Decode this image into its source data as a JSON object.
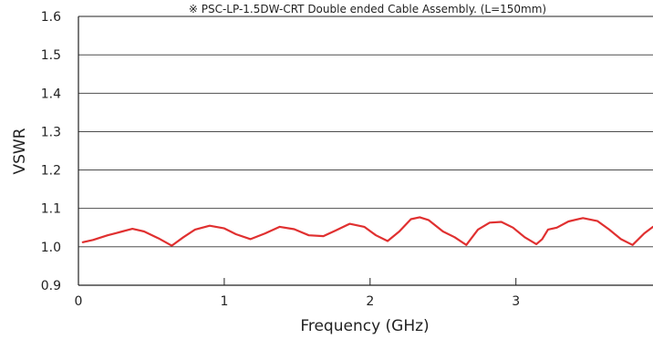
{
  "chart_data": {
    "type": "line",
    "title": "※ PSC-LP-1.5DW-CRT Double ended Cable Assembly. (L=150mm)",
    "xlabel": "Frequency (GHz)",
    "ylabel": "VSWR",
    "xlim": [
      0,
      3.94
    ],
    "ylim": [
      0.9,
      1.6
    ],
    "x_ticks": [
      "0",
      "1",
      "2",
      "3"
    ],
    "x_tick_values": [
      0,
      1,
      2,
      3
    ],
    "y_ticks": [
      "0.9",
      "1.0",
      "1.1",
      "1.2",
      "1.3",
      "1.4",
      "1.5",
      "1.6"
    ],
    "y_tick_values": [
      0.9,
      1.0,
      1.1,
      1.2,
      1.3,
      1.4,
      1.5,
      1.6
    ],
    "grid": "horizontal",
    "colors": {
      "line": "#e03030",
      "axis": "#222222",
      "grid": "#333333"
    },
    "series": [
      {
        "name": "",
        "x": [
          0.03,
          0.1,
          0.2,
          0.3,
          0.37,
          0.45,
          0.55,
          0.64,
          0.72,
          0.8,
          0.9,
          1.0,
          1.08,
          1.18,
          1.28,
          1.38,
          1.48,
          1.58,
          1.68,
          1.76,
          1.86,
          1.96,
          2.04,
          2.12,
          2.2,
          2.28,
          2.34,
          2.4,
          2.5,
          2.58,
          2.66,
          2.74,
          2.82,
          2.9,
          2.98,
          3.06,
          3.14,
          3.18,
          3.22,
          3.28,
          3.36,
          3.46,
          3.56,
          3.64,
          3.72,
          3.8,
          3.88,
          3.94
        ],
        "y": [
          1.012,
          1.018,
          1.03,
          1.04,
          1.047,
          1.04,
          1.022,
          1.003,
          1.025,
          1.045,
          1.055,
          1.048,
          1.033,
          1.02,
          1.035,
          1.052,
          1.046,
          1.03,
          1.028,
          1.042,
          1.06,
          1.052,
          1.03,
          1.015,
          1.04,
          1.072,
          1.077,
          1.07,
          1.04,
          1.025,
          1.005,
          1.045,
          1.063,
          1.065,
          1.05,
          1.025,
          1.007,
          1.02,
          1.045,
          1.05,
          1.066,
          1.075,
          1.067,
          1.045,
          1.02,
          1.005,
          1.035,
          1.052
        ]
      }
    ]
  }
}
